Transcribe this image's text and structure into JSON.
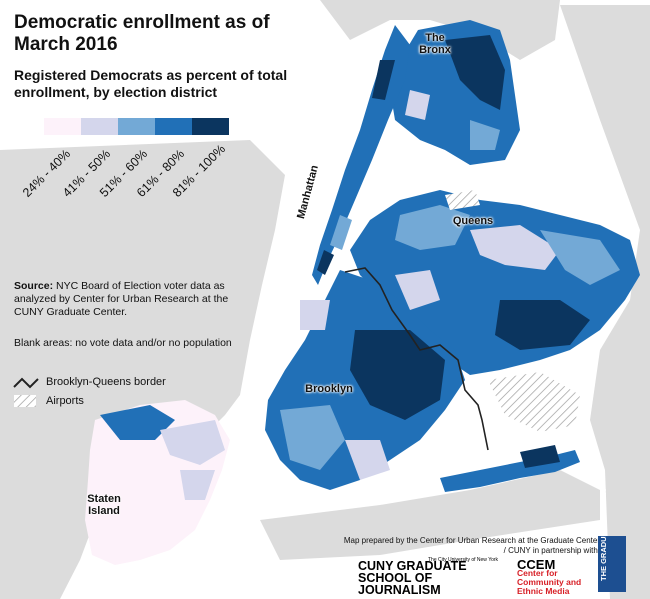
{
  "title": "Democratic enrollment as of March 2016",
  "subtitle": "Registered Democrats as percent of total enrollment, by election district",
  "legend": [
    {
      "label": "24% - 40%",
      "color": "#fdf2fa"
    },
    {
      "label": "41% - 50%",
      "color": "#d4d6ec"
    },
    {
      "label": "51% - 60%",
      "color": "#73a9d6"
    },
    {
      "label": "61% - 80%",
      "color": "#2170b7"
    },
    {
      "label": "81% - 100%",
      "color": "#0b355f"
    }
  ],
  "source": {
    "prefix": "Source:",
    "text": "NYC Board of Election voter data as analyzed by Center for Urban Research at the CUNY Graduate Center."
  },
  "blank_note": "Blank areas: no vote data and/or no population",
  "border_label": "Brooklyn-Queens border",
  "airports_label": "Airports",
  "boroughs": {
    "bronx": "The Bronx",
    "manhattan": "Manhattan",
    "queens": "Queens",
    "brooklyn": "Brooklyn",
    "staten_island": "Staten Island"
  },
  "credits": "Map prepared by the Center for Urban Research at the Graduate Center / CUNY in partnership with:",
  "logos": {
    "cuny_small": "The City University of New York",
    "cuny_main": "CUNY GRADUATE SCHOOL OF JOURNALISM",
    "ccem_main": "CCEM",
    "ccem_sub": "Center for Community and Ethnic Media",
    "gc": "THE GRADUATE CENTER"
  },
  "colors": {
    "land": "#dcdcdc",
    "water": "#ffffff",
    "border": "#222222"
  }
}
